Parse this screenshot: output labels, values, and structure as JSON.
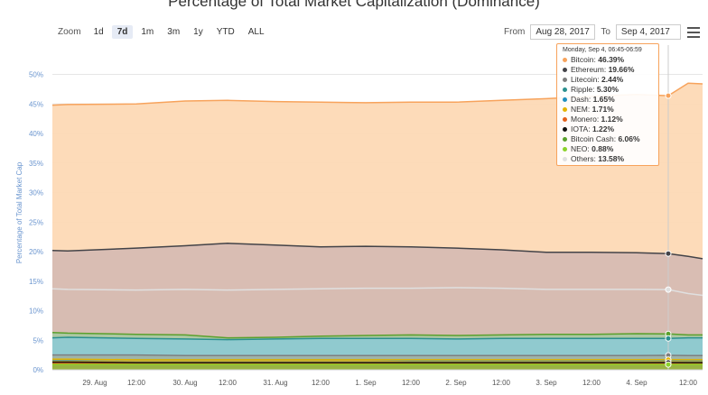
{
  "chart_data": {
    "type": "area",
    "title": "Percentage of Total Market Capitalization (Dominance)",
    "ylabel": "Percentage of Total Market Cap",
    "xlabel": "",
    "ylim": [
      0,
      50
    ],
    "yticks": [
      "0%",
      "5%",
      "10%",
      "15%",
      "20%",
      "25%",
      "30%",
      "35%",
      "40%",
      "45%",
      "50%"
    ],
    "xticks": [
      "29. Aug",
      "12:00",
      "30. Aug",
      "12:00",
      "31. Aug",
      "12:00",
      "1. Sep",
      "12:00",
      "2. Sep",
      "12:00",
      "3. Sep",
      "12:00",
      "4. Sep",
      "12:00"
    ],
    "x": [
      "Aug 28 20:00",
      "Aug 29 00:00",
      "Aug 29 12:00",
      "Aug 30 00:00",
      "Aug 30 12:00",
      "Aug 31 00:00",
      "Aug 31 12:00",
      "Sep 1 00:00",
      "Sep 1 12:00",
      "Sep 2 00:00",
      "Sep 2 12:00",
      "Sep 3 00:00",
      "Sep 3 12:00",
      "Sep 4 00:00",
      "Sep 4 06:45",
      "Sep 4 12:00",
      "Sep 4 14:00"
    ],
    "series": [
      {
        "name": "Bitcoin",
        "color": "#f7a35c",
        "fill": "#fdd9b5",
        "values": [
          44.8,
          44.9,
          45.0,
          45.5,
          45.6,
          45.4,
          45.3,
          45.2,
          45.3,
          45.3,
          45.6,
          45.9,
          46.3,
          46.6,
          46.39,
          48.5,
          48.4
        ]
      },
      {
        "name": "Ethereum",
        "color": "#434348",
        "fill": "#d7bcb2",
        "values": [
          20.2,
          20.1,
          20.6,
          21.0,
          21.4,
          21.1,
          20.8,
          20.9,
          20.8,
          20.6,
          20.3,
          19.9,
          19.9,
          19.8,
          19.66,
          19.2,
          18.8
        ]
      },
      {
        "name": "Others",
        "color": "#e0e0e0",
        "fill": "#d7bcb2",
        "values": [
          13.7,
          13.6,
          13.5,
          13.6,
          13.5,
          13.6,
          13.7,
          13.8,
          13.8,
          13.9,
          13.8,
          13.6,
          13.6,
          13.6,
          13.58,
          12.9,
          12.6
        ]
      },
      {
        "name": "Bitcoin Cash",
        "color": "#5aa02c",
        "fill": "#aac8a2",
        "values": [
          6.3,
          6.2,
          6.0,
          5.9,
          5.4,
          5.5,
          5.7,
          5.8,
          5.9,
          5.8,
          5.9,
          6.0,
          6.0,
          6.1,
          6.06,
          5.9,
          5.9
        ]
      },
      {
        "name": "Ripple",
        "color": "#2b908f",
        "fill": "#8ecad2",
        "values": [
          5.4,
          5.5,
          5.3,
          5.2,
          5.1,
          5.2,
          5.3,
          5.3,
          5.3,
          5.2,
          5.3,
          5.3,
          5.3,
          5.3,
          5.3,
          5.4,
          5.4
        ]
      },
      {
        "name": "Litecoin",
        "color": "#7f7f7f",
        "fill": "#9fb2a8",
        "values": [
          2.5,
          2.5,
          2.5,
          2.4,
          2.4,
          2.4,
          2.4,
          2.4,
          2.4,
          2.4,
          2.4,
          2.4,
          2.4,
          2.4,
          2.44,
          2.4,
          2.4
        ]
      },
      {
        "name": "Dash",
        "color": "#1f8fbf",
        "fill": "#7da7a9",
        "values": [
          1.7,
          1.7,
          1.7,
          1.7,
          1.7,
          1.7,
          1.7,
          1.7,
          1.6,
          1.6,
          1.6,
          1.6,
          1.6,
          1.6,
          1.65,
          1.6,
          1.6
        ]
      },
      {
        "name": "NEM",
        "color": "#e4b400",
        "fill": "#c9b03c",
        "values": [
          1.8,
          1.8,
          1.7,
          1.7,
          1.7,
          1.7,
          1.7,
          1.7,
          1.7,
          1.7,
          1.7,
          1.7,
          1.7,
          1.7,
          1.71,
          1.7,
          1.7
        ]
      },
      {
        "name": "Monero",
        "color": "#e4601b",
        "fill": "#a0892f",
        "values": [
          1.1,
          1.1,
          1.1,
          1.1,
          1.1,
          1.1,
          1.1,
          1.1,
          1.1,
          1.1,
          1.1,
          1.1,
          1.1,
          1.1,
          1.12,
          1.1,
          1.1
        ]
      },
      {
        "name": "IOTA",
        "color": "#111111",
        "fill": "#8a8b35",
        "values": [
          1.3,
          1.3,
          1.2,
          1.2,
          1.2,
          1.2,
          1.2,
          1.2,
          1.2,
          1.2,
          1.2,
          1.2,
          1.2,
          1.2,
          1.22,
          1.2,
          1.2
        ]
      },
      {
        "name": "NEO",
        "color": "#8bd22a",
        "fill": "#9bb544",
        "values": [
          0.9,
          0.9,
          0.9,
          0.9,
          0.9,
          0.9,
          0.9,
          0.9,
          0.9,
          0.9,
          0.9,
          0.9,
          0.9,
          0.9,
          0.88,
          0.9,
          0.9
        ]
      }
    ],
    "legend": "none",
    "grid": true
  },
  "zoom": {
    "label": "Zoom",
    "buttons": [
      "1d",
      "7d",
      "1m",
      "3m",
      "1y",
      "YTD",
      "ALL"
    ],
    "active": "7d"
  },
  "range": {
    "from_label": "From",
    "from_value": "Aug 28, 2017",
    "to_label": "To",
    "to_value": "Sep 4, 2017"
  },
  "tooltip": {
    "header": "Monday, Sep 4, 06:45-06:59",
    "rows": [
      {
        "name": "Bitcoin",
        "value": "46.39%",
        "color": "#f7a35c"
      },
      {
        "name": "Ethereum",
        "value": "19.66%",
        "color": "#434348"
      },
      {
        "name": "Litecoin",
        "value": "2.44%",
        "color": "#7f7f7f"
      },
      {
        "name": "Ripple",
        "value": "5.30%",
        "color": "#2b908f"
      },
      {
        "name": "Dash",
        "value": "1.65%",
        "color": "#1f8fbf"
      },
      {
        "name": "NEM",
        "value": "1.71%",
        "color": "#e4b400"
      },
      {
        "name": "Monero",
        "value": "1.12%",
        "color": "#e4601b"
      },
      {
        "name": "IOTA",
        "value": "1.22%",
        "color": "#111111"
      },
      {
        "name": "Bitcoin Cash",
        "value": "6.06%",
        "color": "#5aa02c"
      },
      {
        "name": "NEO",
        "value": "0.88%",
        "color": "#8bd22a"
      },
      {
        "name": "Others",
        "value": "13.58%",
        "color": "#e0e0e0"
      }
    ]
  }
}
